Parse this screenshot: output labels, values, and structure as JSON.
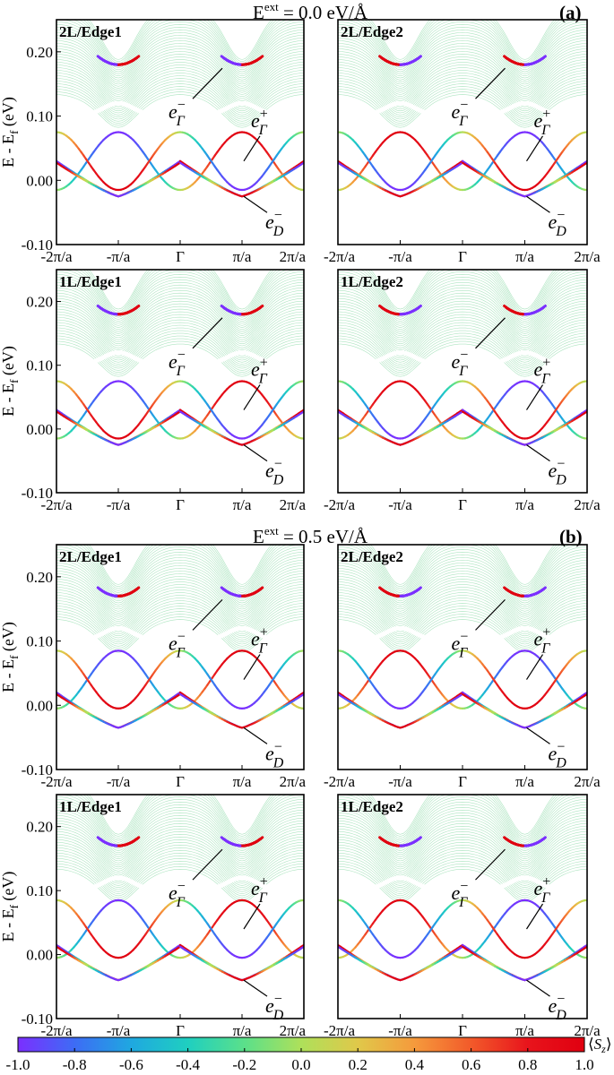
{
  "section_a": {
    "title": "E",
    "title_sup": "ext",
    "title_value": " = 0.0 eV/Å",
    "tag": "(a)"
  },
  "section_b": {
    "title": "E",
    "title_sup": "ext",
    "title_value": " = 0.5 eV/Å",
    "tag": "(b)"
  },
  "annotations": {
    "e_gamma_minus": {
      "base": "e",
      "sub": "Γ",
      "sup": "−"
    },
    "e_gamma_plus": {
      "base": "e",
      "sub": "Γ",
      "sup": "+"
    },
    "e_D_minus": {
      "base": "e",
      "sub": "D",
      "sup": "−"
    }
  },
  "colorbar": {
    "label": "⟨S_z⟩",
    "ticks": [
      "-1.0",
      "-0.8",
      "-0.6",
      "-0.4",
      "-0.2",
      "0.0",
      "0.2",
      "0.4",
      "0.6",
      "0.8",
      "1.0"
    ],
    "colors": [
      "#7b2fff",
      "#3d6cf5",
      "#1fa8e0",
      "#1fcfc0",
      "#5be08a",
      "#aee05a",
      "#e0c84a",
      "#f59a3c",
      "#f25a2a",
      "#e8141c",
      "#e00010"
    ]
  },
  "chart_data": [
    {
      "type": "line",
      "panel": "2L/Edge1",
      "section": "a",
      "ylabel": "E - E_f (eV)",
      "ylim": [
        -0.1,
        0.25
      ],
      "yticks": [
        "-0.10",
        "0.00",
        "0.10",
        "0.20"
      ],
      "xticks": [
        "-2π/a",
        "-π/a",
        "Γ",
        "π/a",
        "2π/a"
      ],
      "e_dirac": -0.025,
      "e_cross": 0.03,
      "e_gamma_minus": 0.18,
      "e_gamma_plus": 0.03,
      "spin_sign": 1
    },
    {
      "type": "line",
      "panel": "2L/Edge2",
      "section": "a",
      "ylabel": "",
      "ylim": [
        -0.1,
        0.25
      ],
      "yticks": [],
      "xticks": [
        "-2π/a",
        "-π/a",
        "Γ",
        "π/a",
        "2π/a"
      ],
      "e_dirac": -0.025,
      "e_cross": 0.03,
      "e_gamma_minus": 0.18,
      "e_gamma_plus": 0.03,
      "spin_sign": -1
    },
    {
      "type": "line",
      "panel": "1L/Edge1",
      "section": "a",
      "ylabel": "E - E_f (eV)",
      "ylim": [
        -0.1,
        0.25
      ],
      "yticks": [
        "-0.10",
        "0.00",
        "0.10",
        "0.20"
      ],
      "xticks": [
        "-2π/a",
        "-π/a",
        "Γ",
        "π/a",
        "2π/a"
      ],
      "e_dirac": -0.025,
      "e_cross": 0.03,
      "e_gamma_minus": 0.18,
      "e_gamma_plus": 0.03,
      "spin_sign": 1
    },
    {
      "type": "line",
      "panel": "1L/Edge2",
      "section": "a",
      "ylabel": "",
      "ylim": [
        -0.1,
        0.25
      ],
      "yticks": [],
      "xticks": [
        "-2π/a",
        "-π/a",
        "Γ",
        "π/a",
        "2π/a"
      ],
      "e_dirac": -0.025,
      "e_cross": 0.03,
      "e_gamma_minus": 0.18,
      "e_gamma_plus": 0.03,
      "spin_sign": -1
    },
    {
      "type": "line",
      "panel": "2L/Edge1",
      "section": "b",
      "ylabel": "E - E_f (eV)",
      "ylim": [
        -0.1,
        0.25
      ],
      "yticks": [
        "-0.10",
        "0.00",
        "0.10",
        "0.20"
      ],
      "xticks": [
        "-2π/a",
        "-π/a",
        "Γ",
        "π/a",
        "2π/a"
      ],
      "e_dirac": -0.035,
      "e_cross": 0.04,
      "e_gamma_minus": 0.17,
      "e_gamma_plus": 0.04,
      "spin_sign": 1
    },
    {
      "type": "line",
      "panel": "2L/Edge2",
      "section": "b",
      "ylabel": "",
      "ylim": [
        -0.1,
        0.25
      ],
      "yticks": [],
      "xticks": [
        "-2π/a",
        "-π/a",
        "Γ",
        "π/a",
        "2π/a"
      ],
      "e_dirac": -0.035,
      "e_cross": 0.04,
      "e_gamma_minus": 0.17,
      "e_gamma_plus": 0.04,
      "spin_sign": -1
    },
    {
      "type": "line",
      "panel": "1L/Edge1",
      "section": "b",
      "ylabel": "E - E_f (eV)",
      "ylim": [
        -0.1,
        0.25
      ],
      "yticks": [
        "-0.10",
        "0.00",
        "0.10",
        "0.20"
      ],
      "xticks": [
        "-2π/a",
        "-π/a",
        "Γ",
        "π/a",
        "2π/a"
      ],
      "e_dirac": -0.04,
      "e_cross": 0.04,
      "e_gamma_minus": 0.17,
      "e_gamma_plus": 0.04,
      "spin_sign": 1
    },
    {
      "type": "line",
      "panel": "1L/Edge2",
      "section": "b",
      "ylabel": "",
      "ylim": [
        -0.1,
        0.25
      ],
      "yticks": [],
      "xticks": [
        "-2π/a",
        "-π/a",
        "Γ",
        "π/a",
        "2π/a"
      ],
      "e_dirac": -0.04,
      "e_cross": 0.04,
      "e_gamma_minus": 0.17,
      "e_gamma_plus": 0.04,
      "spin_sign": -1
    }
  ]
}
